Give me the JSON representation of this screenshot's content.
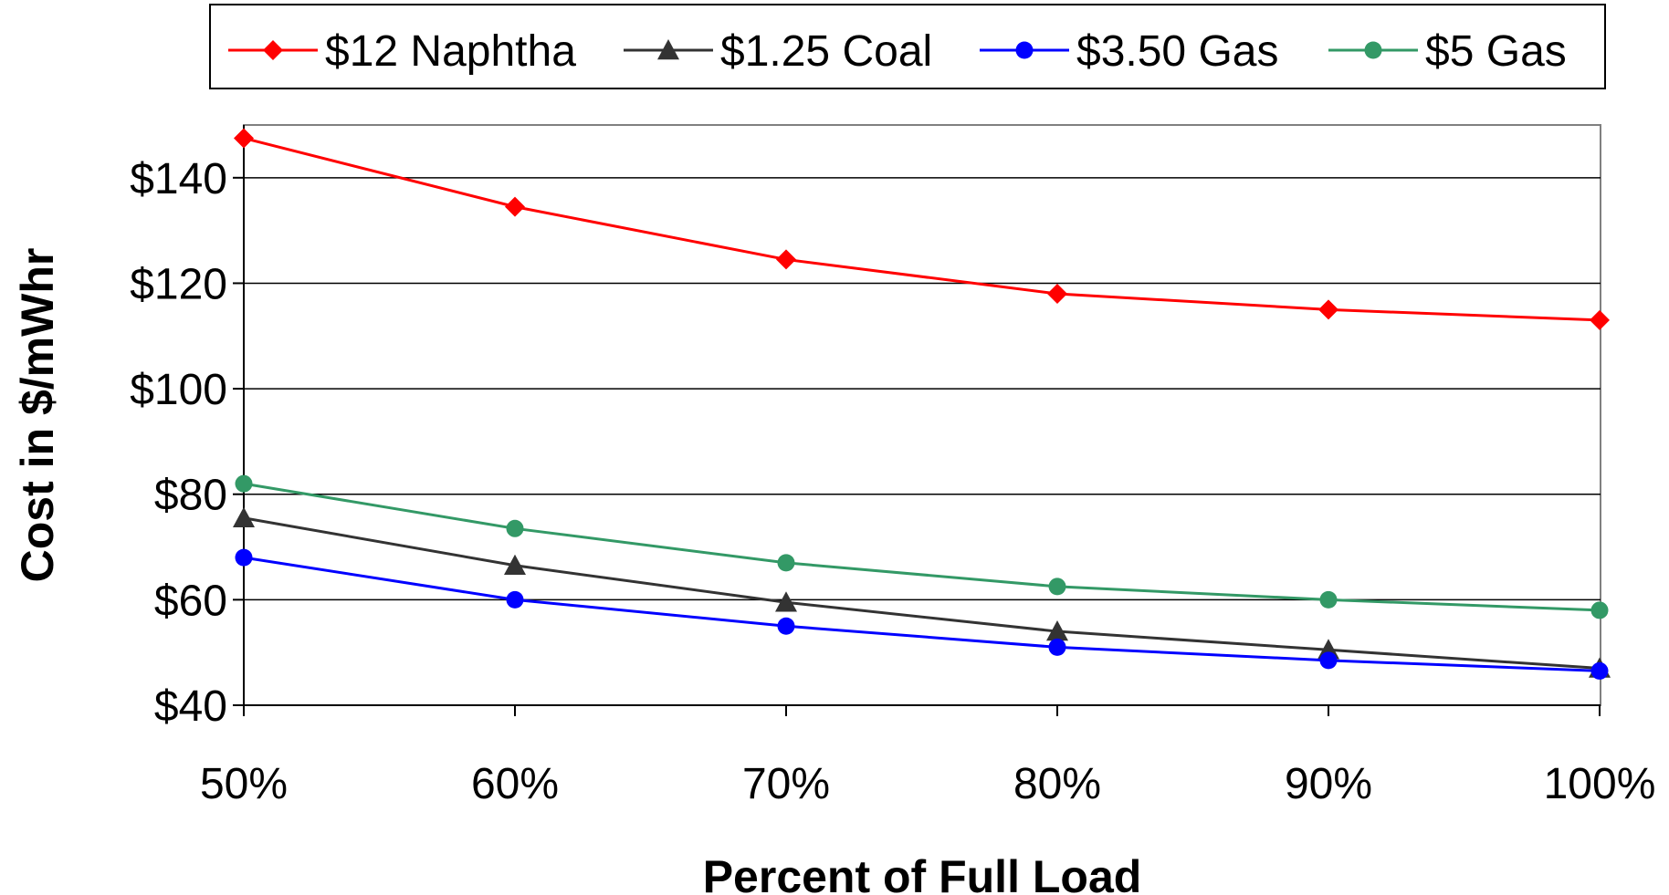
{
  "chart_data": {
    "type": "line",
    "title": "",
    "xlabel": "Percent of Full Load",
    "ylabel": "Cost in $/mWhr",
    "categories": [
      "50%",
      "60%",
      "70%",
      "80%",
      "90%",
      "100%"
    ],
    "ylim": [
      40,
      150
    ],
    "yticks": [
      40,
      60,
      80,
      100,
      120,
      140
    ],
    "ytick_labels": [
      "$40",
      "$60",
      "$80",
      "$100",
      "$120",
      "$140"
    ],
    "grid": "horizontal",
    "legend_position": "top",
    "series": [
      {
        "name": "$12 Naphtha",
        "color": "#ff0000",
        "marker": "diamond",
        "values": [
          147.5,
          134.5,
          124.5,
          118,
          115,
          113
        ]
      },
      {
        "name": "$1.25 Coal",
        "color": "#333333",
        "marker": "triangle",
        "values": [
          75.5,
          66.5,
          59.5,
          54,
          50.5,
          47
        ]
      },
      {
        "name": "$3.50 Gas",
        "color": "#0000ff",
        "marker": "circle",
        "values": [
          68,
          60,
          55,
          51,
          48.5,
          46.5
        ]
      },
      {
        "name": "$5 Gas",
        "color": "#339966",
        "marker": "circle",
        "values": [
          82,
          73.5,
          67,
          62.5,
          60,
          58
        ]
      }
    ]
  }
}
